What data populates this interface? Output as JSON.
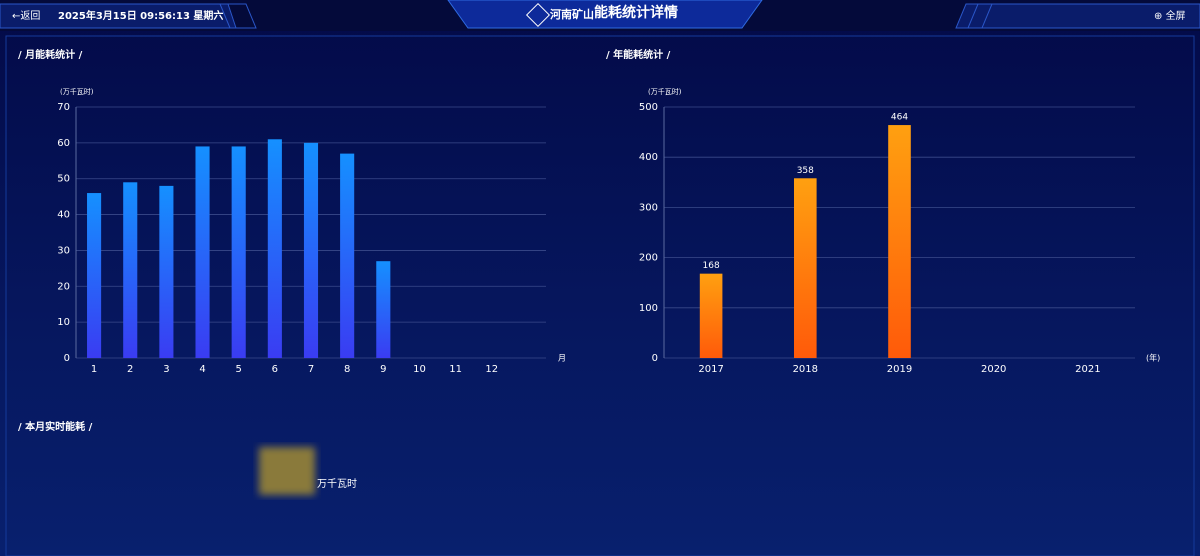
{
  "header": {
    "back": "返回",
    "datetime": "2025年3月15日 09:56:13 星期六",
    "logo": "河南矿山",
    "title": "能耗统计详情",
    "fullscreen": "全屏"
  },
  "chart_data": [
    {
      "type": "bar",
      "title": "月能耗统计",
      "y_label": "(万千瓦时)",
      "x_label": "月",
      "categories": [
        "1",
        "2",
        "3",
        "4",
        "5",
        "6",
        "7",
        "8",
        "9",
        "10",
        "11",
        "12",
        null
      ],
      "values": [
        46,
        49,
        48,
        59,
        59,
        61,
        60,
        57,
        27,
        null,
        null,
        null,
        null
      ],
      "ylim": [
        0,
        70
      ],
      "yticks": [
        0,
        10,
        20,
        30,
        40,
        50,
        60,
        70
      ],
      "grid": true,
      "data_labels": false,
      "gradient": [
        "#1590ff",
        "#3a3cf2"
      ]
    },
    {
      "type": "bar",
      "title": "年能耗统计",
      "y_label": "(万千瓦时)",
      "x_label": "(年)",
      "categories": [
        "2017",
        "2018",
        "2019",
        "2020",
        "2021"
      ],
      "values": [
        168,
        358,
        464,
        null,
        null
      ],
      "ylim": [
        0,
        500
      ],
      "yticks": [
        0,
        100,
        200,
        300,
        400,
        500
      ],
      "grid": true,
      "data_labels": true,
      "gradient": [
        "#ffa010",
        "#ff5a0a"
      ]
    }
  ],
  "realtime": {
    "title": "本月实时能耗",
    "unit": "万千瓦时"
  }
}
